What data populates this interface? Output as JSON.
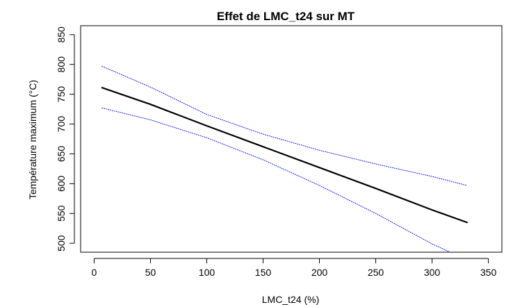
{
  "chart_data": {
    "type": "line",
    "title": "Effet de LMC_t24 sur MT",
    "xlabel": "LMC_t24 (%)",
    "ylabel": "Température maximum (°C)",
    "xlim": [
      -12,
      362
    ],
    "ylim": [
      485,
      865
    ],
    "xticks": [
      0,
      50,
      100,
      150,
      200,
      250,
      300,
      350
    ],
    "yticks": [
      500,
      550,
      600,
      650,
      700,
      750,
      800,
      850
    ],
    "grid": false,
    "legend": "none",
    "series": [
      {
        "role": "fit",
        "color": "#000000",
        "style": "solid",
        "x": [
          7,
          50,
          100,
          150,
          200,
          250,
          300,
          331
        ],
        "y": [
          761,
          733,
          697,
          662,
          627,
          592,
          556,
          535
        ]
      },
      {
        "role": "upper-confidence",
        "color": "#0000ff",
        "style": "dotted",
        "x": [
          7,
          50,
          100,
          150,
          200,
          250,
          300,
          331
        ],
        "y": [
          797,
          762,
          716,
          683,
          656,
          633,
          612,
          597
        ]
      },
      {
        "role": "lower-confidence",
        "color": "#0000ff",
        "style": "dotted",
        "x": [
          7,
          50,
          100,
          150,
          200,
          250,
          300,
          316
        ],
        "y": [
          727,
          707,
          677,
          640,
          597,
          550,
          499,
          485
        ]
      }
    ]
  }
}
